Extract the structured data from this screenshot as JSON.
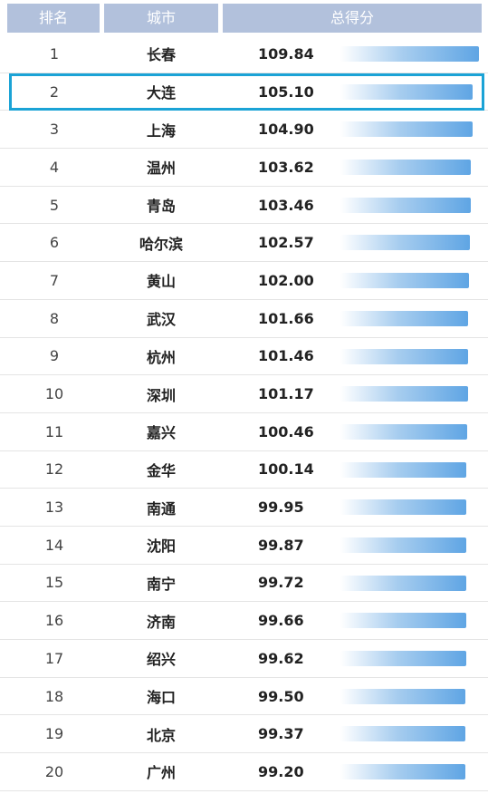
{
  "header": {
    "rank": "排名",
    "city": "城市",
    "score": "总得分"
  },
  "chart_data": {
    "type": "bar",
    "orientation": "horizontal",
    "title": "",
    "xlabel": "总得分",
    "ylabel": "城市",
    "categories": [
      "长春",
      "大连",
      "上海",
      "温州",
      "青岛",
      "哈尔滨",
      "黄山",
      "武汉",
      "杭州",
      "深圳",
      "嘉兴",
      "金华",
      "南通",
      "沈阳",
      "南宁",
      "济南",
      "绍兴",
      "海口",
      "北京",
      "广州"
    ],
    "ranks": [
      "1",
      "2",
      "3",
      "4",
      "5",
      "6",
      "7",
      "8",
      "9",
      "10",
      "11",
      "12",
      "13",
      "14",
      "15",
      "16",
      "17",
      "18",
      "19",
      "20"
    ],
    "values": [
      109.84,
      105.1,
      104.9,
      103.62,
      103.46,
      102.57,
      102.0,
      101.66,
      101.46,
      101.17,
      100.46,
      100.14,
      99.95,
      99.87,
      99.72,
      99.66,
      99.62,
      99.5,
      99.37,
      99.2
    ],
    "value_labels": [
      "109.84",
      "105.10",
      "104.90",
      "103.62",
      "103.46",
      "102.57",
      "102.00",
      "101.66",
      "101.46",
      "101.17",
      "100.46",
      "100.14",
      "99.95",
      "99.87",
      "99.72",
      "99.66",
      "99.62",
      "99.50",
      "99.37",
      "99.20"
    ],
    "highlighted_category": "大连",
    "grid": false,
    "colors": {
      "header_bg": "#b2c1dc",
      "bar": "#5fa5e4",
      "highlight_border": "#1ba3d6"
    }
  }
}
